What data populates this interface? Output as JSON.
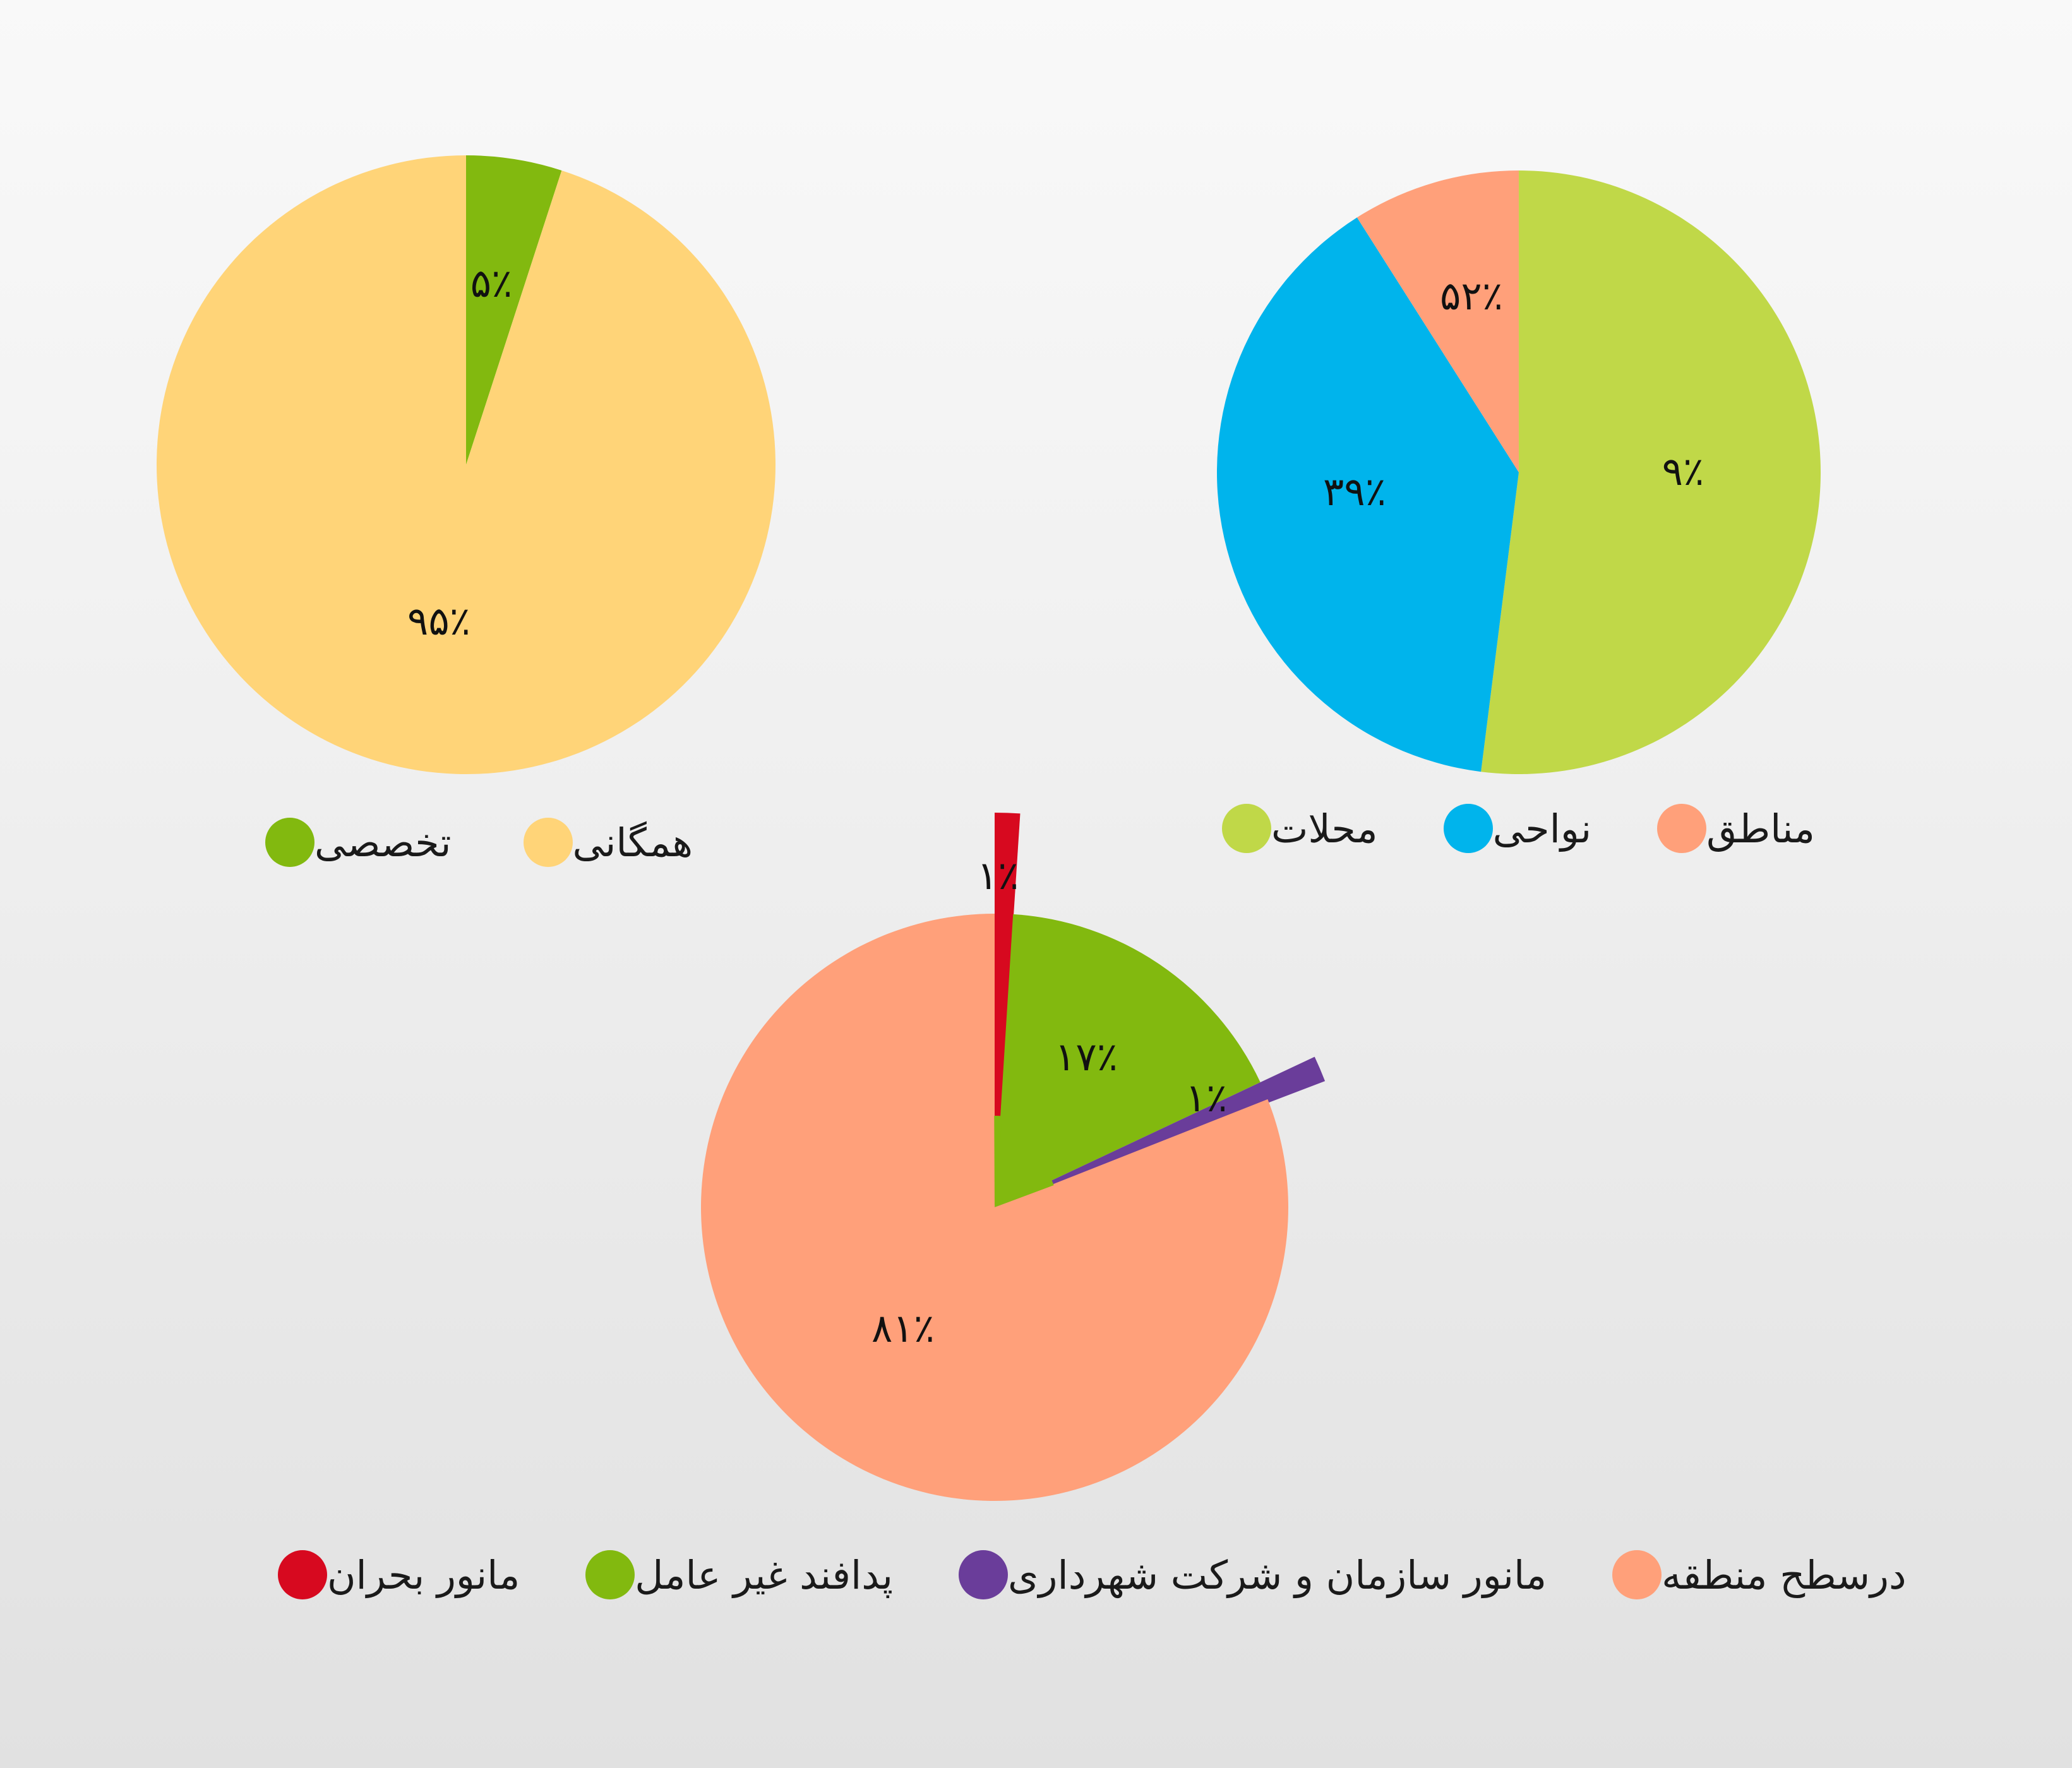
{
  "chart_data": [
    {
      "type": "pie",
      "id": "c1",
      "slices": [
        {
          "label": "تخصصی",
          "value": 5,
          "value_label": "۵٪",
          "color": "#82b90f"
        },
        {
          "label": "همگانی",
          "value": 95,
          "value_label": "۹۵٪",
          "color": "#ffd478"
        }
      ],
      "legend_placement": "bottom"
    },
    {
      "type": "pie",
      "id": "c2",
      "slices": [
        {
          "label": "محلات",
          "value": 52,
          "value_label": "۵۲٪",
          "color": "#c0d848"
        },
        {
          "label": "نواحی",
          "value": 39,
          "value_label": "۳۹٪",
          "color": "#00b4ec"
        },
        {
          "label": "مناطق",
          "value": 9,
          "value_label": "۹٪",
          "color": "#ffa07a"
        }
      ],
      "legend_placement": "bottom"
    },
    {
      "type": "pie",
      "id": "c3",
      "slices": [
        {
          "label": "مانور بحران",
          "value": 1,
          "value_label": "۱٪",
          "color": "#d7091f",
          "exploded": true
        },
        {
          "label": "پدافند غیر عامل",
          "value": 17,
          "value_label": "۱۷٪",
          "color": "#82b90f"
        },
        {
          "label": "مانور سازمان و شرکت شهرداری",
          "value": 1,
          "value_label": "۱٪",
          "color": "#6a3d9a",
          "exploded": true
        },
        {
          "label": "درسطح منطقه",
          "value": 81,
          "value_label": "۸۱٪",
          "color": "#ffa07a"
        }
      ],
      "legend_placement": "bottom"
    }
  ]
}
